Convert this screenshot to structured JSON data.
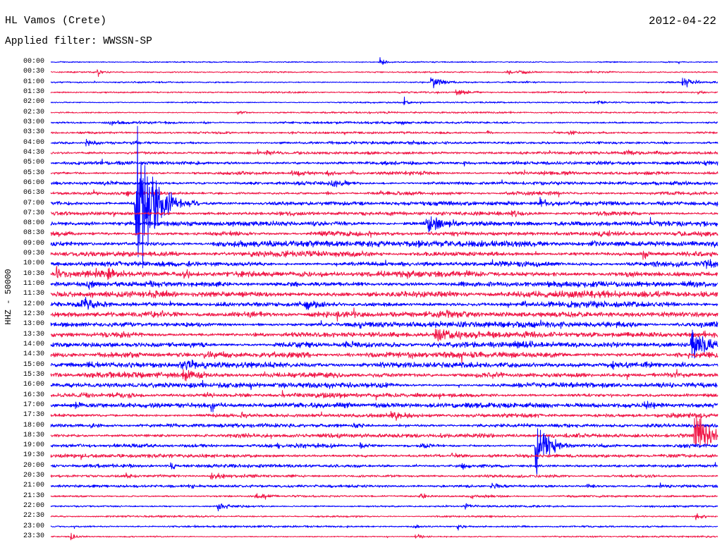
{
  "chart_data": {
    "type": "line",
    "title": "HL Vamos (Crete)",
    "subtitle": "Applied filter: WWSSN-SP",
    "date": "2012-04-22",
    "ylabel": "HHZ - 50000",
    "x_range_minutes": [
      0,
      30
    ],
    "grid": false,
    "trace_colors": [
      "#0000ff",
      "#f01848"
    ],
    "rows": [
      {
        "label": "00:00",
        "noise": 0.07,
        "events": [
          {
            "minute": 14.8,
            "amp": 0.45,
            "decay": 0.25
          }
        ]
      },
      {
        "label": "00:30",
        "noise": 0.07,
        "events": [
          {
            "minute": 2.1,
            "amp": 0.5,
            "decay": 0.25
          },
          {
            "minute": 20.5,
            "amp": 0.45,
            "decay": 0.25
          },
          {
            "minute": 21.1,
            "amp": 0.3,
            "decay": 0.5
          }
        ]
      },
      {
        "label": "01:00",
        "noise": 0.08,
        "events": [
          {
            "minute": 17.1,
            "amp": 0.8,
            "decay": 0.45
          },
          {
            "minute": 28.4,
            "amp": 0.75,
            "decay": 0.45
          }
        ]
      },
      {
        "label": "01:30",
        "noise": 0.08,
        "events": [
          {
            "minute": 18.2,
            "amp": 0.4,
            "decay": 0.6
          },
          {
            "minute": 23.9,
            "amp": 0.2,
            "decay": 0.4
          },
          {
            "minute": 29.1,
            "amp": 0.25,
            "decay": 0.3
          }
        ]
      },
      {
        "label": "02:00",
        "noise": 0.07,
        "events": [
          {
            "minute": 15.9,
            "amp": 0.6,
            "decay": 0.15
          },
          {
            "minute": 24.6,
            "amp": 0.3,
            "decay": 0.3
          },
          {
            "minute": 27.0,
            "amp": 0.2,
            "decay": 0.8
          }
        ]
      },
      {
        "label": "02:30",
        "noise": 0.07,
        "events": [
          {
            "minute": 8.4,
            "amp": 0.35,
            "decay": 0.4
          },
          {
            "minute": 15.1,
            "amp": 0.2,
            "decay": 0.3
          }
        ]
      },
      {
        "label": "03:00",
        "noise": 0.1,
        "events": [
          {
            "minute": 2.4,
            "amp": 0.3,
            "decay": 1.2
          },
          {
            "minute": 6.9,
            "amp": 0.2,
            "decay": 0.3
          },
          {
            "minute": 15.8,
            "amp": 0.2,
            "decay": 0.4
          }
        ]
      },
      {
        "label": "03:30",
        "noise": 0.1,
        "events": [
          {
            "minute": 10.7,
            "amp": 0.2,
            "decay": 0.4
          },
          {
            "minute": 19.6,
            "amp": 0.2,
            "decay": 0.4
          },
          {
            "minute": 23.3,
            "amp": 0.25,
            "decay": 0.5
          }
        ]
      },
      {
        "label": "04:00",
        "noise": 0.12,
        "events": [
          {
            "minute": 1.6,
            "amp": 0.55,
            "decay": 0.25
          },
          {
            "minute": 12.5,
            "amp": 0.2,
            "decay": 0.4
          },
          {
            "minute": 16.1,
            "amp": 0.2,
            "decay": 0.4
          },
          {
            "minute": 27.5,
            "amp": 0.25,
            "decay": 0.4
          }
        ]
      },
      {
        "label": "04:30",
        "noise": 0.13,
        "events": [
          {
            "minute": 9.7,
            "amp": 0.3,
            "decay": 0.4
          },
          {
            "minute": 22.4,
            "amp": 0.25,
            "decay": 0.4
          },
          {
            "minute": 25.9,
            "amp": 0.35,
            "decay": 0.8
          }
        ]
      },
      {
        "label": "05:00",
        "noise": 0.15,
        "events": [
          {
            "minute": 15.0,
            "amp": 0.3,
            "decay": 0.4
          },
          {
            "minute": 18.6,
            "amp": 0.3,
            "decay": 0.4
          },
          {
            "minute": 24.9,
            "amp": 0.2,
            "decay": 0.4
          },
          {
            "minute": 29.4,
            "amp": 0.3,
            "decay": 0.3
          }
        ]
      },
      {
        "label": "05:30",
        "noise": 0.16,
        "events": [
          {
            "minute": 8.5,
            "amp": 0.2,
            "decay": 0.4
          },
          {
            "minute": 10.8,
            "amp": 0.45,
            "decay": 1.0
          },
          {
            "minute": 12.4,
            "amp": 0.3,
            "decay": 0.4
          }
        ]
      },
      {
        "label": "06:00",
        "noise": 0.17,
        "events": [
          {
            "minute": 2.4,
            "amp": 0.2,
            "decay": 0.6
          },
          {
            "minute": 12.6,
            "amp": 0.4,
            "decay": 0.9
          },
          {
            "minute": 23.3,
            "amp": 0.2,
            "decay": 0.4
          },
          {
            "minute": 29.4,
            "amp": 0.25,
            "decay": 0.4
          }
        ]
      },
      {
        "label": "06:30",
        "noise": 0.17,
        "events": [
          {
            "minute": 3.4,
            "amp": 0.3,
            "decay": 0.4
          },
          {
            "minute": 12.4,
            "amp": 0.2,
            "decay": 0.4
          },
          {
            "minute": 14.8,
            "amp": 0.35,
            "decay": 0.5
          }
        ]
      },
      {
        "label": "07:00",
        "noise": 0.19,
        "events": [
          {
            "minute": 3.8,
            "amp": 10.8,
            "decay": 0.55
          },
          {
            "minute": 4.1,
            "amp": 1.3,
            "decay": 1.3
          },
          {
            "minute": 22.0,
            "amp": 0.8,
            "decay": 0.3
          }
        ]
      },
      {
        "label": "07:30",
        "noise": 0.2,
        "events": [
          {
            "minute": 10.3,
            "amp": 0.3,
            "decay": 0.8
          },
          {
            "minute": 15.2,
            "amp": 0.2,
            "decay": 0.4
          },
          {
            "minute": 20.7,
            "amp": 0.35,
            "decay": 0.8
          }
        ]
      },
      {
        "label": "08:00",
        "noise": 0.21,
        "events": [
          {
            "minute": 11.7,
            "amp": 0.35,
            "decay": 0.5
          },
          {
            "minute": 16.9,
            "amp": 1.0,
            "decay": 0.9
          },
          {
            "minute": 24.7,
            "amp": 0.2,
            "decay": 0.4
          }
        ]
      },
      {
        "label": "08:30",
        "noise": 0.23,
        "events": [
          {
            "minute": 0.3,
            "amp": 0.3,
            "decay": 0.5
          },
          {
            "minute": 18.0,
            "amp": 0.3,
            "decay": 0.5
          },
          {
            "minute": 24.7,
            "amp": 0.35,
            "decay": 0.5
          }
        ]
      },
      {
        "label": "09:00",
        "noise": 0.24,
        "events": [
          {
            "minute": 16.5,
            "amp": 0.35,
            "decay": 0.5
          },
          {
            "minute": 22.1,
            "amp": 0.2,
            "decay": 0.4
          },
          {
            "minute": 24.2,
            "amp": 0.25,
            "decay": 0.5
          }
        ]
      },
      {
        "label": "09:30",
        "noise": 0.24,
        "events": [
          {
            "minute": 13.3,
            "amp": 0.3,
            "decay": 0.5
          },
          {
            "minute": 26.6,
            "amp": 0.55,
            "decay": 0.4
          }
        ]
      },
      {
        "label": "10:00",
        "noise": 0.25,
        "events": [
          {
            "minute": 20.1,
            "amp": 0.3,
            "decay": 0.5
          },
          {
            "minute": 29.4,
            "amp": 0.55,
            "decay": 0.6
          }
        ]
      },
      {
        "label": "10:30",
        "noise": 0.27,
        "events": [
          {
            "minute": 0.25,
            "amp": 0.75,
            "decay": 0.6
          },
          {
            "minute": 2.0,
            "amp": 0.6,
            "decay": 0.5
          },
          {
            "minute": 2.55,
            "amp": 0.5,
            "decay": 0.4
          },
          {
            "minute": 6.0,
            "amp": 0.5,
            "decay": 0.4
          },
          {
            "minute": 16.0,
            "amp": 0.35,
            "decay": 0.5
          },
          {
            "minute": 18.6,
            "amp": 0.3,
            "decay": 0.5
          },
          {
            "minute": 25.9,
            "amp": 0.45,
            "decay": 0.6
          }
        ]
      },
      {
        "label": "11:00",
        "noise": 0.27,
        "events": [
          {
            "minute": 1.7,
            "amp": 0.75,
            "decay": 0.3
          },
          {
            "minute": 4.4,
            "amp": 0.3,
            "decay": 0.5
          },
          {
            "minute": 10.7,
            "amp": 0.3,
            "decay": 0.5
          }
        ]
      },
      {
        "label": "11:30",
        "noise": 0.27,
        "events": [
          {
            "minute": 1.8,
            "amp": 0.35,
            "decay": 0.4
          },
          {
            "minute": 4.4,
            "amp": 0.7,
            "decay": 0.8
          }
        ]
      },
      {
        "label": "12:00",
        "noise": 0.26,
        "events": [
          {
            "minute": 1.4,
            "amp": 1.0,
            "decay": 0.8
          },
          {
            "minute": 11.4,
            "amp": 0.9,
            "decay": 0.6
          },
          {
            "minute": 21.2,
            "amp": 0.3,
            "decay": 0.6
          },
          {
            "minute": 24.0,
            "amp": 0.25,
            "decay": 0.5
          }
        ]
      },
      {
        "label": "12:30",
        "noise": 0.26,
        "events": [
          {
            "minute": 5.0,
            "amp": 0.3,
            "decay": 0.5
          },
          {
            "minute": 13.3,
            "amp": 0.3,
            "decay": 0.5
          },
          {
            "minute": 17.8,
            "amp": 0.6,
            "decay": 0.6
          },
          {
            "minute": 20.6,
            "amp": 0.3,
            "decay": 0.5
          }
        ]
      },
      {
        "label": "13:00",
        "noise": 0.25,
        "events": [
          {
            "minute": 13.9,
            "amp": 0.3,
            "decay": 0.5
          },
          {
            "minute": 17.1,
            "amp": 0.3,
            "decay": 0.5
          }
        ]
      },
      {
        "label": "13:30",
        "noise": 0.25,
        "events": [
          {
            "minute": 14.5,
            "amp": 0.3,
            "decay": 0.5
          },
          {
            "minute": 17.3,
            "amp": 0.9,
            "decay": 1.0
          },
          {
            "minute": 29.1,
            "amp": 0.3,
            "decay": 0.4
          }
        ]
      },
      {
        "label": "14:00",
        "noise": 0.25,
        "events": [
          {
            "minute": 13.3,
            "amp": 0.35,
            "decay": 0.5
          },
          {
            "minute": 20.9,
            "amp": 0.6,
            "decay": 0.5
          },
          {
            "minute": 28.8,
            "amp": 2.4,
            "decay": 0.55
          }
        ]
      },
      {
        "label": "14:30",
        "noise": 0.25,
        "events": [
          {
            "minute": 6.9,
            "amp": 0.5,
            "decay": 0.8
          },
          {
            "minute": 16.1,
            "amp": 0.3,
            "decay": 0.5
          },
          {
            "minute": 28.2,
            "amp": 0.3,
            "decay": 0.4
          }
        ]
      },
      {
        "label": "15:00",
        "noise": 0.25,
        "events": [
          {
            "minute": 1.5,
            "amp": 0.35,
            "decay": 0.5
          },
          {
            "minute": 5.8,
            "amp": 0.7,
            "decay": 1.0
          },
          {
            "minute": 25.2,
            "amp": 0.45,
            "decay": 0.4
          },
          {
            "minute": 28.3,
            "amp": 0.4,
            "decay": 0.4
          }
        ]
      },
      {
        "label": "15:30",
        "noise": 0.24,
        "events": [
          {
            "minute": 5.9,
            "amp": 0.7,
            "decay": 1.1
          },
          {
            "minute": 19.9,
            "amp": 0.4,
            "decay": 0.5
          }
        ]
      },
      {
        "label": "16:00",
        "noise": 0.22,
        "events": [
          {
            "minute": 10.4,
            "amp": 0.3,
            "decay": 0.5
          },
          {
            "minute": 29.75,
            "amp": 0.35,
            "decay": 0.3
          }
        ]
      },
      {
        "label": "16:30",
        "noise": 0.22,
        "events": [
          {
            "minute": 6.9,
            "amp": 0.4,
            "decay": 0.5
          },
          {
            "minute": 16.4,
            "amp": 0.25,
            "decay": 0.4
          }
        ]
      },
      {
        "label": "17:00",
        "noise": 0.21,
        "events": [
          {
            "minute": 1.1,
            "amp": 0.45,
            "decay": 0.4
          },
          {
            "minute": 7.2,
            "amp": 0.3,
            "decay": 0.5
          },
          {
            "minute": 26.7,
            "amp": 0.5,
            "decay": 0.5
          }
        ]
      },
      {
        "label": "17:30",
        "noise": 0.21,
        "events": [
          {
            "minute": 8.5,
            "amp": 0.3,
            "decay": 0.5
          },
          {
            "minute": 15.3,
            "amp": 0.6,
            "decay": 0.5
          }
        ]
      },
      {
        "label": "18:00",
        "noise": 0.2,
        "events": [
          {
            "minute": 1.8,
            "amp": 0.35,
            "decay": 0.5
          },
          {
            "minute": 13.6,
            "amp": 0.3,
            "decay": 0.5
          }
        ]
      },
      {
        "label": "18:30",
        "noise": 0.2,
        "events": [
          {
            "minute": 28.95,
            "amp": 3.2,
            "decay": 0.6
          }
        ]
      },
      {
        "label": "19:00",
        "noise": 0.18,
        "events": [
          {
            "minute": 10.2,
            "amp": 0.3,
            "decay": 0.5
          },
          {
            "minute": 13.9,
            "amp": 0.45,
            "decay": 0.5
          },
          {
            "minute": 16.6,
            "amp": 0.55,
            "decay": 0.5
          },
          {
            "minute": 21.8,
            "amp": 3.6,
            "decay": 0.5
          }
        ]
      },
      {
        "label": "19:30",
        "noise": 0.16,
        "events": [
          {
            "minute": 18.0,
            "amp": 0.3,
            "decay": 0.5
          }
        ]
      },
      {
        "label": "20:00",
        "noise": 0.15,
        "events": [
          {
            "minute": 5.4,
            "amp": 0.5,
            "decay": 0.3
          },
          {
            "minute": 18.5,
            "amp": 0.35,
            "decay": 0.5
          }
        ]
      },
      {
        "label": "20:30",
        "noise": 0.14,
        "events": [
          {
            "minute": 3.3,
            "amp": 0.3,
            "decay": 0.5
          },
          {
            "minute": 7.2,
            "amp": 0.45,
            "decay": 0.5
          }
        ]
      },
      {
        "label": "21:00",
        "noise": 0.13,
        "events": [
          {
            "minute": 6.2,
            "amp": 0.3,
            "decay": 0.4
          },
          {
            "minute": 19.8,
            "amp": 0.5,
            "decay": 0.4
          },
          {
            "minute": 24.1,
            "amp": 0.5,
            "decay": 0.4
          },
          {
            "minute": 27.4,
            "amp": 0.35,
            "decay": 0.4
          }
        ]
      },
      {
        "label": "21:30",
        "noise": 0.11,
        "events": [
          {
            "minute": 9.2,
            "amp": 0.45,
            "decay": 0.6
          },
          {
            "minute": 16.6,
            "amp": 0.65,
            "decay": 0.2
          },
          {
            "minute": 18.9,
            "amp": 0.3,
            "decay": 0.4
          }
        ]
      },
      {
        "label": "22:00",
        "noise": 0.09,
        "events": [
          {
            "minute": 7.5,
            "amp": 0.5,
            "decay": 0.5
          },
          {
            "minute": 18.6,
            "amp": 0.4,
            "decay": 0.4
          }
        ]
      },
      {
        "label": "22:30",
        "noise": 0.09,
        "events": [
          {
            "minute": 29.0,
            "amp": 0.4,
            "decay": 0.4
          }
        ]
      },
      {
        "label": "23:00",
        "noise": 0.08,
        "events": [
          {
            "minute": 16.3,
            "amp": 0.3,
            "decay": 0.5
          },
          {
            "minute": 18.3,
            "amp": 0.7,
            "decay": 0.2
          }
        ]
      },
      {
        "label": "23:30",
        "noise": 0.07,
        "events": [
          {
            "minute": 0.9,
            "amp": 0.5,
            "decay": 0.3
          },
          {
            "minute": 16.4,
            "amp": 0.35,
            "decay": 0.4
          }
        ]
      }
    ]
  }
}
